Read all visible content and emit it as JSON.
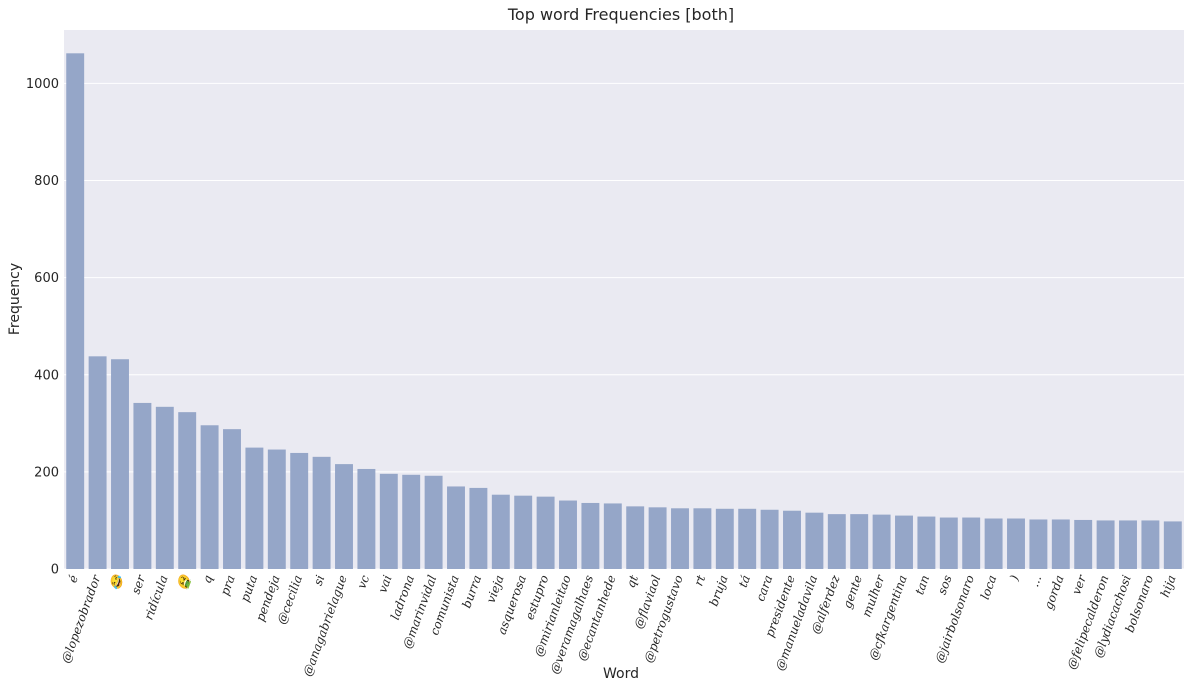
{
  "chart_data": {
    "type": "bar",
    "title": "Top word Frequencies [both]",
    "xlabel": "Word",
    "ylabel": "Frequency",
    "ylim": [
      0,
      1110
    ],
    "yticks": [
      0,
      200,
      400,
      600,
      800,
      1000
    ],
    "grid": true,
    "bar_color": "#95a6c8",
    "plot_background": "#eaeaf2",
    "categories": [
      "é",
      "@lopezobrador",
      "😂",
      "ser",
      "ridícula",
      "🤮",
      "q",
      "pra",
      "puta",
      "pendeja",
      "@cecilia",
      "si",
      "@anagabrielague",
      "vc",
      "vai",
      "ladrona",
      "@marinvidal",
      "comunista",
      "burra",
      "vieja",
      "asquerosa",
      "estupro",
      "@mirianleitao",
      "@veramagalhaes",
      "@ecantanhede",
      "qt",
      "@flaviaol",
      "@petrogustavo",
      "rt",
      "bruja",
      "tá",
      "cara",
      "presidente",
      "@manueladavila",
      "@alferdez",
      "gente",
      "mulher",
      "@cfkargentina",
      "tan",
      "sos",
      "@jairbolsonaro",
      "loca",
      ")",
      "...",
      "gorda",
      "ver",
      "@felipecalderon",
      "@lydiacachosi",
      "bolsonaro",
      "hija"
    ],
    "values": [
      1062,
      438,
      432,
      342,
      334,
      323,
      296,
      288,
      250,
      246,
      239,
      231,
      216,
      206,
      196,
      194,
      192,
      170,
      167,
      153,
      151,
      149,
      141,
      136,
      135,
      129,
      127,
      125,
      125,
      124,
      124,
      122,
      120,
      116,
      113,
      113,
      112,
      110,
      108,
      106,
      106,
      104,
      104,
      102,
      102,
      101,
      100,
      100,
      100,
      98
    ]
  }
}
